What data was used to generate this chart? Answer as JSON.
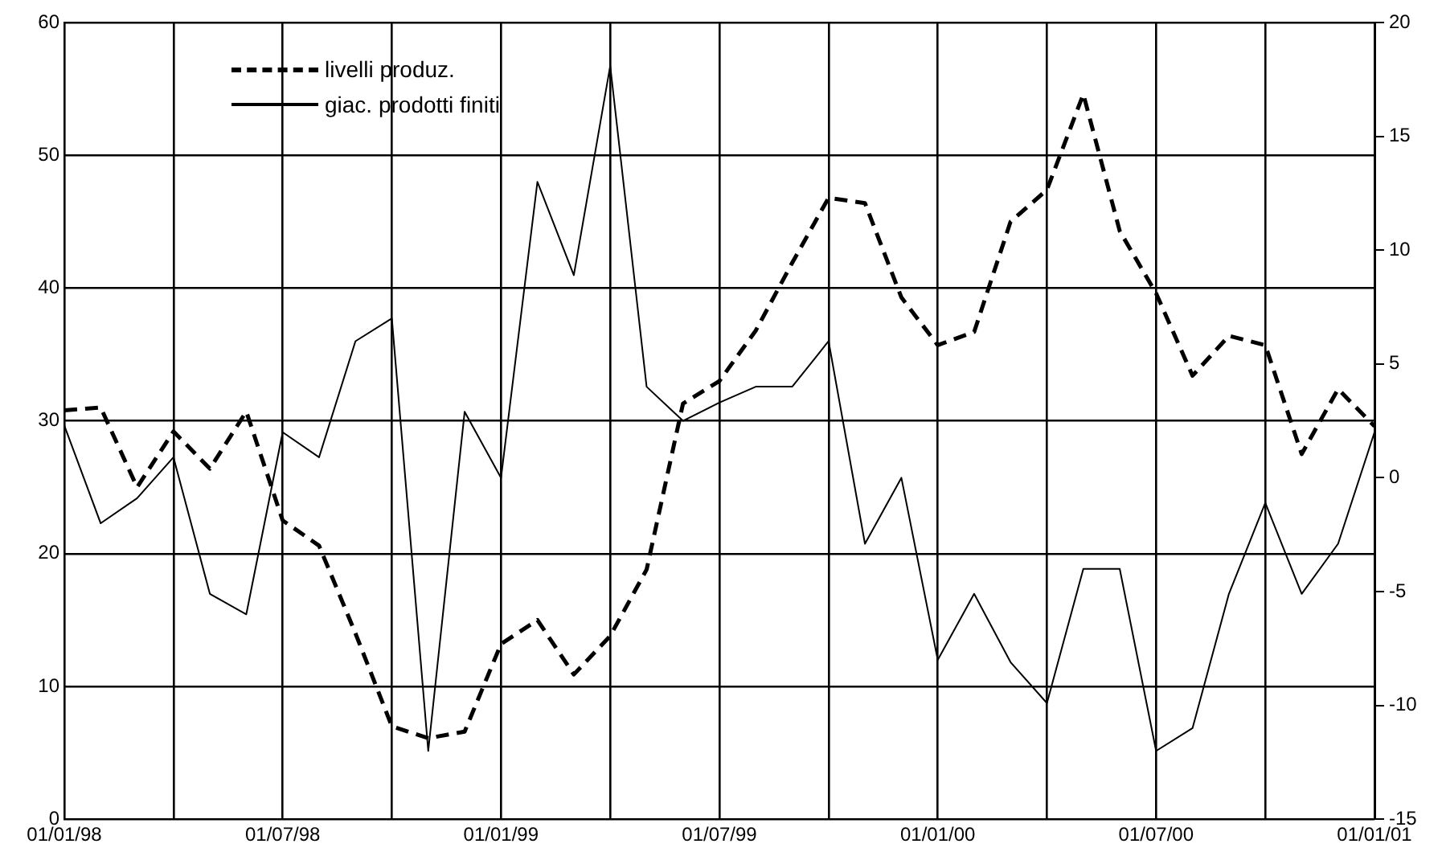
{
  "chart_data": {
    "type": "line",
    "x": [
      "1998-01",
      "1998-02",
      "1998-03",
      "1998-04",
      "1998-05",
      "1998-06",
      "1998-07",
      "1998-08",
      "1998-09",
      "1998-10",
      "1998-11",
      "1998-12",
      "1999-01",
      "1999-02",
      "1999-03",
      "1999-04",
      "1999-05",
      "1999-06",
      "1999-07",
      "1999-08",
      "1999-09",
      "1999-10",
      "1999-11",
      "1999-12",
      "2000-01",
      "2000-02",
      "2000-03",
      "2000-04",
      "2000-05",
      "2000-06",
      "2000-07",
      "2000-08",
      "2000-09",
      "2000-10",
      "2000-11",
      "2000-12",
      "2001-01"
    ],
    "series": [
      {
        "name": "livelli produz.",
        "color": "#000000",
        "line_style": "dashed",
        "values": [
          30.8,
          31,
          25,
          29.2,
          26.4,
          30.7,
          22.5,
          20.6,
          14,
          7,
          6.1,
          6.6,
          13.2,
          15,
          10.9,
          13.8,
          18.8,
          31.3,
          33,
          36.8,
          41.9,
          46.8,
          46.4,
          39.3,
          35.7,
          36.7,
          45,
          47.4,
          54.6,
          44.3,
          39.6,
          33.4,
          36.4,
          35.7,
          27.5,
          32.4,
          29.6
        ]
      },
      {
        "name": "giac. prodotti finiti",
        "color": "#000000",
        "line_style": "solid",
        "axis": "y2",
        "values": [
          2.3,
          -2,
          -0.9,
          0.9,
          -5.1,
          -6,
          2,
          0.9,
          6,
          7,
          -12,
          2.9,
          0,
          13,
          8.9,
          18.1,
          4,
          2.5,
          3.3,
          4,
          4,
          6,
          -2.9,
          0,
          -8,
          -5.1,
          -8.1,
          -9.9,
          -4,
          -4,
          -12,
          -11,
          -5.1,
          -1.1,
          -5.1,
          -2.9,
          2
        ]
      }
    ],
    "xlim": [
      "1998-01-01",
      "2001-01-01"
    ],
    "xticks": [
      {
        "value": "1998-01-01",
        "label": "01/01/98"
      },
      {
        "value": "1998-04-01",
        "label": null
      },
      {
        "value": "1998-07-01",
        "label": "01/07/98"
      },
      {
        "value": "1998-10-01",
        "label": null
      },
      {
        "value": "1999-01-01",
        "label": "01/01/99"
      },
      {
        "value": "1999-04-01",
        "label": null
      },
      {
        "value": "1999-07-01",
        "label": "01/07/99"
      },
      {
        "value": "1999-10-01",
        "label": null
      },
      {
        "value": "2000-01-01",
        "label": "01/01/00"
      },
      {
        "value": "2000-04-01",
        "label": null
      },
      {
        "value": "2000-07-01",
        "label": "01/07/00"
      },
      {
        "value": "2000-10-01",
        "label": null
      },
      {
        "value": "2001-01-01",
        "label": "01/01/01"
      }
    ],
    "ylim": [
      0,
      60
    ],
    "yticks": [
      0,
      10,
      20,
      30,
      40,
      50,
      60
    ],
    "y2lim": [
      -15,
      20
    ],
    "y2ticks": [
      -15,
      -10,
      -5,
      0,
      5,
      10,
      15,
      20
    ],
    "grid": true,
    "legend": "top left",
    "marker": "none"
  }
}
